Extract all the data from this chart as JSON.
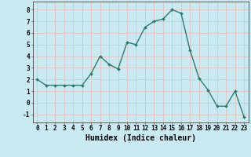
{
  "x": [
    0,
    1,
    2,
    3,
    4,
    5,
    6,
    7,
    8,
    9,
    10,
    11,
    12,
    13,
    14,
    15,
    16,
    17,
    18,
    19,
    20,
    21,
    22,
    23
  ],
  "y": [
    2.0,
    1.5,
    1.5,
    1.5,
    1.5,
    1.5,
    2.5,
    4.0,
    3.3,
    2.9,
    5.2,
    5.0,
    6.5,
    7.0,
    7.2,
    8.0,
    7.7,
    4.5,
    2.1,
    1.1,
    -0.3,
    -0.3,
    1.0,
    -1.2
  ],
  "line_color": "#2e7d6e",
  "marker": "D",
  "marker_size": 2.0,
  "bg_color": "#c8eaf0",
  "grid_color": "#e8b8b8",
  "xlabel": "Humidex (Indice chaleur)",
  "xlim": [
    -0.5,
    23.5
  ],
  "ylim": [
    -1.7,
    8.7
  ],
  "yticks": [
    -1,
    0,
    1,
    2,
    3,
    4,
    5,
    6,
    7,
    8
  ],
  "xticks": [
    0,
    1,
    2,
    3,
    4,
    5,
    6,
    7,
    8,
    9,
    10,
    11,
    12,
    13,
    14,
    15,
    16,
    17,
    18,
    19,
    20,
    21,
    22,
    23
  ],
  "tick_label_fontsize": 5.5,
  "xlabel_fontsize": 7.0,
  "line_width": 1.0
}
